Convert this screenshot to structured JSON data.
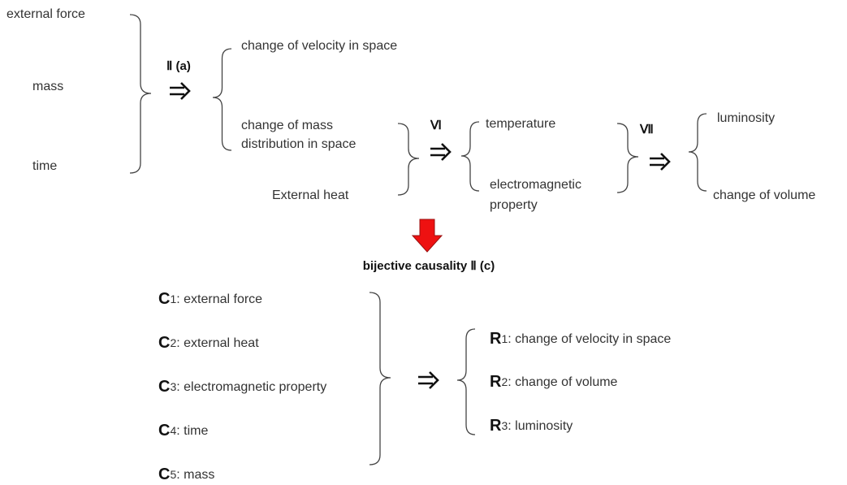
{
  "inputs": [
    "external force",
    "mass",
    "time"
  ],
  "step_labels": {
    "first": "Ⅱ (a)",
    "second": "Ⅵ",
    "third": "Ⅶ"
  },
  "motion_results": {
    "velocity": "change of velocity in space",
    "mass_distribution": [
      "change of mass",
      "distribution in space"
    ]
  },
  "external_heat": "External heat",
  "thermal_results": {
    "temperature": "temperature",
    "electromagnetic": [
      "electromagnetic",
      "property"
    ]
  },
  "final_results": {
    "luminosity": "luminosity",
    "volume": "change of volume"
  },
  "bijective_title": "bijective causality Ⅱ (c)",
  "causes": [
    {
      "letter": "C",
      "index": "1",
      "text": ": external force"
    },
    {
      "letter": "C",
      "index": "2",
      "text": ": external heat"
    },
    {
      "letter": "C",
      "index": "3",
      "text": ": electromagnetic property"
    },
    {
      "letter": "C",
      "index": "4",
      "text": ": time"
    },
    {
      "letter": "C",
      "index": "5",
      "text": ": mass"
    }
  ],
  "results": [
    {
      "letter": "R",
      "index": "1",
      "text": ": change of velocity in space"
    },
    {
      "letter": "R",
      "index": "2",
      "text": ": change of volume"
    },
    {
      "letter": "R",
      "index": "3",
      "text": ": luminosity"
    }
  ]
}
